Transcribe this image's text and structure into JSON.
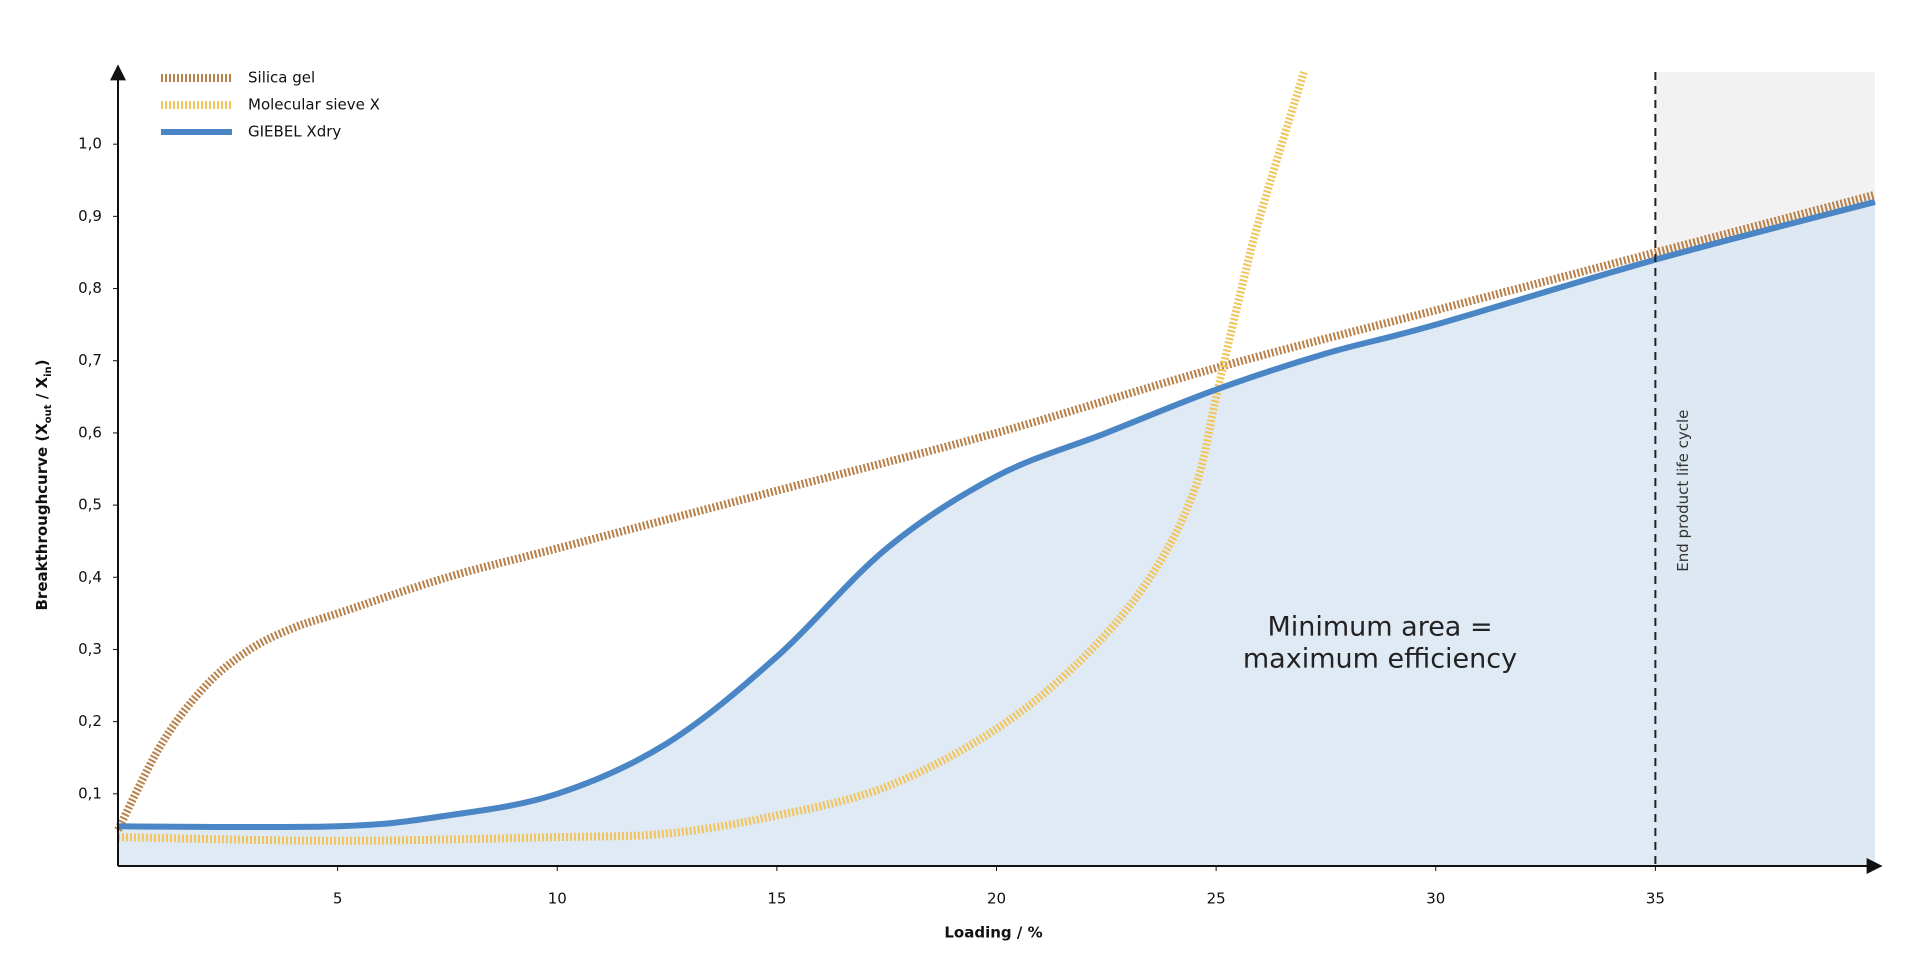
{
  "chart_data": {
    "type": "line",
    "x_label": "Loading / %",
    "y_label": [
      "Breakthroughcurve (X",
      "out",
      " / X",
      "in",
      ")"
    ],
    "xlim": [
      0,
      40
    ],
    "ylim": [
      0,
      1.1
    ],
    "xticks": [
      5,
      10,
      15,
      20,
      25,
      30,
      35
    ],
    "yticks": [
      {
        "value": 0.1,
        "label": "0,1"
      },
      {
        "value": 0.2,
        "label": "0,2"
      },
      {
        "value": 0.3,
        "label": "0,3"
      },
      {
        "value": 0.4,
        "label": "0,4"
      },
      {
        "value": 0.5,
        "label": "0,5"
      },
      {
        "value": 0.6,
        "label": "0,6"
      },
      {
        "value": 0.7,
        "label": "0,7"
      },
      {
        "value": 0.8,
        "label": "0,8"
      },
      {
        "value": 0.9,
        "label": "0,9"
      },
      {
        "value": 1,
        "label": "1,0"
      }
    ],
    "legend": "top-left",
    "series": [
      {
        "name": "Silica gel",
        "color": "#b9814a",
        "style": "dotted",
        "x": [
          0,
          1,
          2,
          3,
          4,
          5,
          7.5,
          10,
          15,
          20,
          25,
          30,
          35,
          40
        ],
        "values": [
          0.05,
          0.17,
          0.25,
          0.3,
          0.33,
          0.35,
          0.4,
          0.44,
          0.52,
          0.6,
          0.69,
          0.77,
          0.85,
          0.93
        ]
      },
      {
        "name": "Molecular sieve X",
        "color": "#f2c45a",
        "style": "dotted",
        "x": [
          0,
          5,
          10,
          12.5,
          15,
          17.5,
          20,
          22,
          23.5,
          24.5,
          25,
          25.5,
          26,
          27
        ],
        "values": [
          0.04,
          0.035,
          0.04,
          0.045,
          0.07,
          0.11,
          0.19,
          0.29,
          0.4,
          0.52,
          0.65,
          0.78,
          0.9,
          1.1
        ]
      },
      {
        "name": "GIEBEL Xdry",
        "color": "#4a86c5",
        "style": "solid",
        "fill": "#dae6f2",
        "x": [
          0,
          5,
          7.5,
          10,
          12.5,
          15,
          17.5,
          20,
          22.5,
          25,
          27.5,
          30,
          35,
          40
        ],
        "values": [
          0.055,
          0.055,
          0.07,
          0.1,
          0.17,
          0.29,
          0.44,
          0.54,
          0.6,
          0.66,
          0.71,
          0.75,
          0.84,
          0.92
        ]
      }
    ],
    "annotations": [
      {
        "text": "End product life cycle",
        "x": 35
      },
      {
        "text": [
          "Minimum area =",
          "maximum efficiency"
        ]
      }
    ]
  }
}
